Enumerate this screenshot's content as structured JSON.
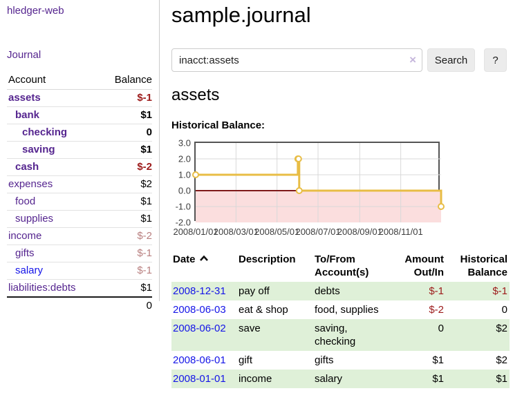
{
  "app": {
    "brand": "hledger-web"
  },
  "sidebar": {
    "nav": {
      "journal_label": "Journal"
    },
    "accounts": {
      "headers": {
        "account": "Account",
        "balance": "Balance"
      },
      "rows": [
        {
          "label": "assets",
          "indent": 1,
          "bold": true,
          "balance": "$-1",
          "neg": "strong"
        },
        {
          "label": "bank",
          "indent": 2,
          "bold": true,
          "balance": "$1"
        },
        {
          "label": "checking",
          "indent": 3,
          "bold": true,
          "balance": "0"
        },
        {
          "label": "saving",
          "indent": 3,
          "bold": true,
          "balance": "$1"
        },
        {
          "label": "cash",
          "indent": 2,
          "bold": true,
          "balance": "$-2",
          "neg": "strong"
        },
        {
          "label": "expenses",
          "indent": 1,
          "bold": false,
          "balance": "$2"
        },
        {
          "label": "food",
          "indent": 2,
          "bold": false,
          "balance": "$1"
        },
        {
          "label": "supplies",
          "indent": 2,
          "bold": false,
          "balance": "$1"
        },
        {
          "label": "income",
          "indent": 1,
          "bold": false,
          "balance": "$-2",
          "neg": "muted"
        },
        {
          "label": "gifts",
          "indent": 2,
          "bold": false,
          "balance": "$-1",
          "neg": "muted"
        },
        {
          "label": "salary",
          "indent": 2,
          "bold": false,
          "balance": "$-1",
          "neg": "muted",
          "link_color": "blue"
        },
        {
          "label": "liabilities:debts",
          "indent": 1,
          "bold": false,
          "balance": "$1"
        }
      ],
      "total": "0"
    }
  },
  "main": {
    "title": "sample.journal",
    "search": {
      "value": "inacct:assets",
      "clear_glyph": "×",
      "search_label": "Search",
      "help_label": "?"
    },
    "account_heading": "assets"
  },
  "chart_data": {
    "type": "line",
    "title": "Historical Balance:",
    "legend": "$",
    "step": true,
    "x_range": [
      "2008-01-01",
      "2008-12-31"
    ],
    "ylim": [
      -2,
      3
    ],
    "series": [
      {
        "name": "$",
        "points": [
          [
            "2008-01-01",
            1
          ],
          [
            "2008-06-01",
            2
          ],
          [
            "2008-06-02",
            2
          ],
          [
            "2008-06-03",
            0
          ],
          [
            "2008-12-31",
            -1
          ]
        ]
      }
    ],
    "y_ticks": [
      {
        "value": 3,
        "label": "3.0"
      },
      {
        "value": 2,
        "label": "2.0"
      },
      {
        "value": 1,
        "label": "1.0"
      },
      {
        "value": 0,
        "label": "0.0"
      },
      {
        "value": -1,
        "label": "-1.0"
      },
      {
        "value": -2,
        "label": "-2.0"
      }
    ],
    "x_ticks": [
      {
        "date": "2008-01-01",
        "label": "2008/01/01"
      },
      {
        "date": "2008-03-01",
        "label": "2008/03/01"
      },
      {
        "date": "2008-05-01",
        "label": "2008/05/01"
      },
      {
        "date": "2008-07-01",
        "label": "2008/07/01"
      },
      {
        "date": "2008-09-01",
        "label": "2008/09/01"
      },
      {
        "date": "2008-11-01",
        "label": "2008/11/01"
      }
    ],
    "colors": {
      "line": "#e8bd45",
      "marker_fill": "#ffffff",
      "negative_area": "#fbdede",
      "zero_line": "#7f1a1a",
      "grid": "#d8d8d8",
      "swatch": "#edc240"
    }
  },
  "register": {
    "columns": [
      {
        "label": "Date",
        "align": "left",
        "sort": "asc"
      },
      {
        "label": "Description",
        "align": "left"
      },
      {
        "label": "To/From Account(s)",
        "align": "left"
      },
      {
        "label": "Amount Out/In",
        "align": "right"
      },
      {
        "label": "Historical Balance",
        "align": "right"
      }
    ],
    "rows": [
      {
        "date": "2008-12-31",
        "description": "pay off",
        "accounts": "debts",
        "amount": "$-1",
        "amount_neg": true,
        "balance": "$-1",
        "balance_neg": true
      },
      {
        "date": "2008-06-03",
        "description": "eat & shop",
        "accounts": "food, supplies",
        "amount": "$-2",
        "amount_neg": true,
        "balance": "0",
        "balance_neg": false
      },
      {
        "date": "2008-06-02",
        "description": "save",
        "accounts": "saving, checking",
        "amount": "0",
        "amount_neg": false,
        "balance": "$2",
        "balance_neg": false
      },
      {
        "date": "2008-06-01",
        "description": "gift",
        "accounts": "gifts",
        "amount": "$1",
        "amount_neg": false,
        "balance": "$2",
        "balance_neg": false
      },
      {
        "date": "2008-01-01",
        "description": "income",
        "accounts": "salary",
        "amount": "$1",
        "amount_neg": false,
        "balance": "$1",
        "balance_neg": false
      }
    ]
  }
}
